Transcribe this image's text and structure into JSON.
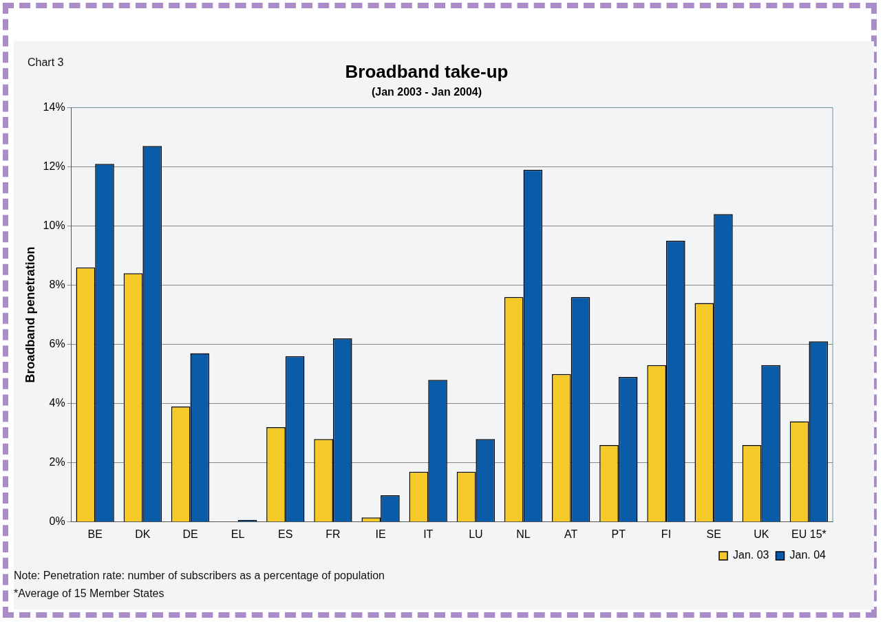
{
  "chart_data": {
    "type": "bar",
    "title": "Broadband take-up",
    "subtitle": "(Jan 2003 - Jan 2004)",
    "ylabel": "Broadband penetration",
    "categories": [
      "BE",
      "DK",
      "DE",
      "EL",
      "ES",
      "FR",
      "IE",
      "IT",
      "LU",
      "NL",
      "AT",
      "PT",
      "FI",
      "SE",
      "UK",
      "EU 15*"
    ],
    "series": [
      {
        "name": "Jan. 03",
        "color": "#f5c928",
        "values": [
          8.6,
          8.4,
          3.9,
          null,
          3.2,
          2.8,
          0.15,
          1.7,
          1.7,
          7.6,
          5.0,
          2.6,
          5.3,
          7.4,
          2.6,
          3.4
        ]
      },
      {
        "name": "Jan. 04",
        "color": "#0b5ca8",
        "values": [
          12.1,
          12.7,
          5.7,
          0.07,
          5.6,
          6.2,
          0.9,
          4.8,
          2.8,
          11.9,
          7.6,
          4.9,
          9.5,
          10.4,
          5.3,
          6.1
        ]
      }
    ],
    "ylim": [
      0,
      14
    ],
    "yticks": [
      {
        "value": 0,
        "label": "0%"
      },
      {
        "value": 2,
        "label": "2%"
      },
      {
        "value": 4,
        "label": "4%"
      },
      {
        "value": 6,
        "label": "6%"
      },
      {
        "value": 8,
        "label": "8%"
      },
      {
        "value": 10,
        "label": "10%"
      },
      {
        "value": 12,
        "label": "12%"
      },
      {
        "value": 14,
        "label": "14%"
      }
    ],
    "grid": "y",
    "legend": "bottom right",
    "annotations": [
      "Chart 3",
      "Note:  Penetration rate: number of subscribers as a percentage of population",
      "*Average of 15 Member States"
    ]
  }
}
